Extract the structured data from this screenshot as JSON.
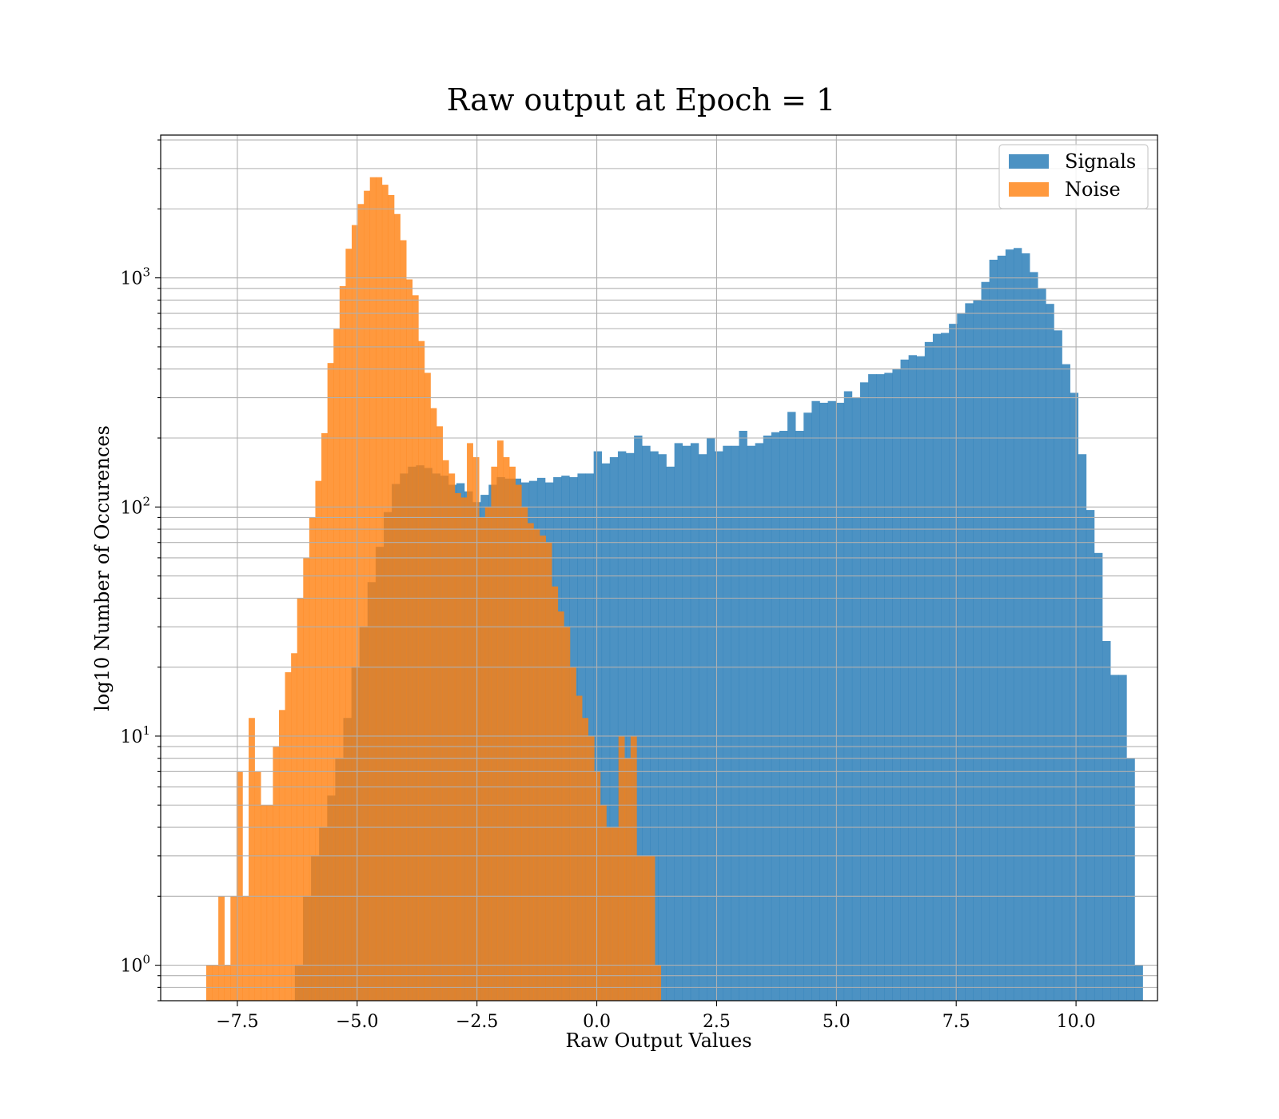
{
  "figure": {
    "title": "Raw output at Epoch = 1"
  },
  "chart_data": {
    "type": "histogram",
    "title": "Raw output at Epoch = 1",
    "xlabel": "Raw Output Values",
    "ylabel": "log10 Number of Occurences",
    "yscale": "log",
    "xlim": [
      -9.1,
      11.7
    ],
    "ylim": [
      0.7,
      4200
    ],
    "x_ticks": [
      -7.5,
      -5.0,
      -2.5,
      0.0,
      2.5,
      5.0,
      7.5,
      10.0
    ],
    "x_tick_labels": [
      "−7.5",
      "−5.0",
      "−2.5",
      "0.0",
      "2.5",
      "5.0",
      "7.5",
      "10.0"
    ],
    "y_ticks": [
      {
        "value": 1,
        "base": "10",
        "exp": "0"
      },
      {
        "value": 10,
        "base": "10",
        "exp": "1"
      },
      {
        "value": 100,
        "base": "10",
        "exp": "2"
      },
      {
        "value": 1000,
        "base": "10",
        "exp": "3"
      }
    ],
    "grid": true,
    "legend_position": "top-right",
    "series": [
      {
        "name": "Signals",
        "color": "#1f77b4",
        "opacity": 0.8,
        "bin_start": -6.3,
        "bin_width": 0.1685,
        "values": [
          1,
          2,
          3,
          4,
          5.5,
          8,
          12,
          20,
          30,
          47,
          67,
          95,
          126,
          140,
          150,
          152,
          148,
          140,
          137,
          125,
          127,
          117,
          105,
          113,
          125,
          135,
          133,
          133,
          128,
          130,
          134,
          128,
          135,
          137,
          135,
          140,
          140,
          175,
          155,
          165,
          175,
          172,
          205,
          185,
          175,
          170,
          150,
          190,
          185,
          190,
          170,
          200,
          175,
          185,
          185,
          215,
          185,
          190,
          205,
          212,
          215,
          260,
          215,
          258,
          290,
          285,
          290,
          285,
          320,
          300,
          350,
          380,
          380,
          385,
          400,
          440,
          460,
          455,
          525,
          570,
          575,
          630,
          700,
          775,
          800,
          960,
          1200,
          1250,
          1330,
          1350,
          1280,
          1060,
          900,
          770,
          590,
          420,
          315,
          170,
          97,
          63,
          26,
          18.5,
          18.5,
          8,
          1
        ]
      },
      {
        "name": "Noise",
        "color": "#ff7f0e",
        "opacity": 0.8,
        "bin_start": -8.15,
        "bin_width": 0.1265,
        "values": [
          1,
          1,
          2,
          1,
          2,
          7,
          2,
          12,
          7,
          5,
          5,
          9,
          13,
          19,
          23,
          40,
          60,
          90,
          130,
          210,
          425,
          600,
          920,
          1340,
          1700,
          2100,
          2400,
          2750,
          2750,
          2550,
          2300,
          1900,
          1460,
          985,
          840,
          530,
          385,
          270,
          225,
          160,
          140,
          115,
          110,
          190,
          165,
          90,
          100,
          150,
          195,
          165,
          150,
          125,
          100,
          85,
          80,
          75,
          70,
          45,
          35,
          30,
          20,
          15,
          12,
          10,
          7,
          5,
          4,
          4,
          10,
          8,
          10,
          3,
          3,
          3,
          1
        ]
      }
    ]
  }
}
